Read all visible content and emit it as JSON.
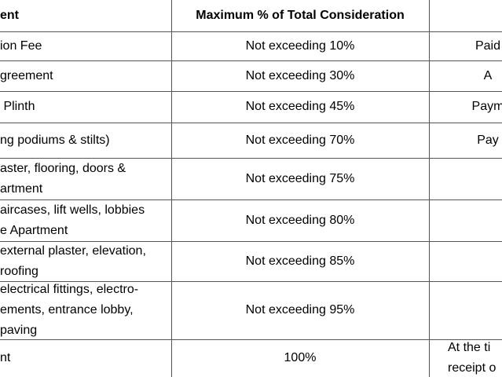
{
  "table": {
    "header": {
      "left": "ent",
      "middle": "Maximum % of Total Consideration"
    },
    "rows": [
      {
        "left": [
          "ion Fee"
        ],
        "middle": "Not exceeding 10%",
        "right": [
          "Paid"
        ]
      },
      {
        "left": [
          "greement"
        ],
        "middle": "Not exceeding 30%",
        "right": [
          "A"
        ]
      },
      {
        "left": [
          " Plinth"
        ],
        "middle": "Not exceeding 45%",
        "right": [
          "Paym"
        ]
      },
      {
        "left": [
          "ng podiums & stilts)"
        ],
        "middle": "Not exceeding 70%",
        "right": [
          "Pay"
        ]
      },
      {
        "left": [
          "aster, flooring, doors &",
          "artment"
        ],
        "middle": "Not exceeding 75%"
      },
      {
        "left": [
          "aircases, lift wells, lobbies",
          "e Apartment"
        ],
        "middle": "Not exceeding 80%"
      },
      {
        "left": [
          "external plaster, elevation,",
          "roofing"
        ],
        "middle": "Not exceeding 85%"
      },
      {
        "left": [
          "electrical fittings, electro-",
          "ements, entrance lobby,",
          "paving"
        ],
        "middle": "Not exceeding 95%"
      },
      {
        "left": [
          "nt"
        ],
        "middle": "100%",
        "right": [
          "At the ti",
          "receipt o"
        ]
      }
    ]
  }
}
